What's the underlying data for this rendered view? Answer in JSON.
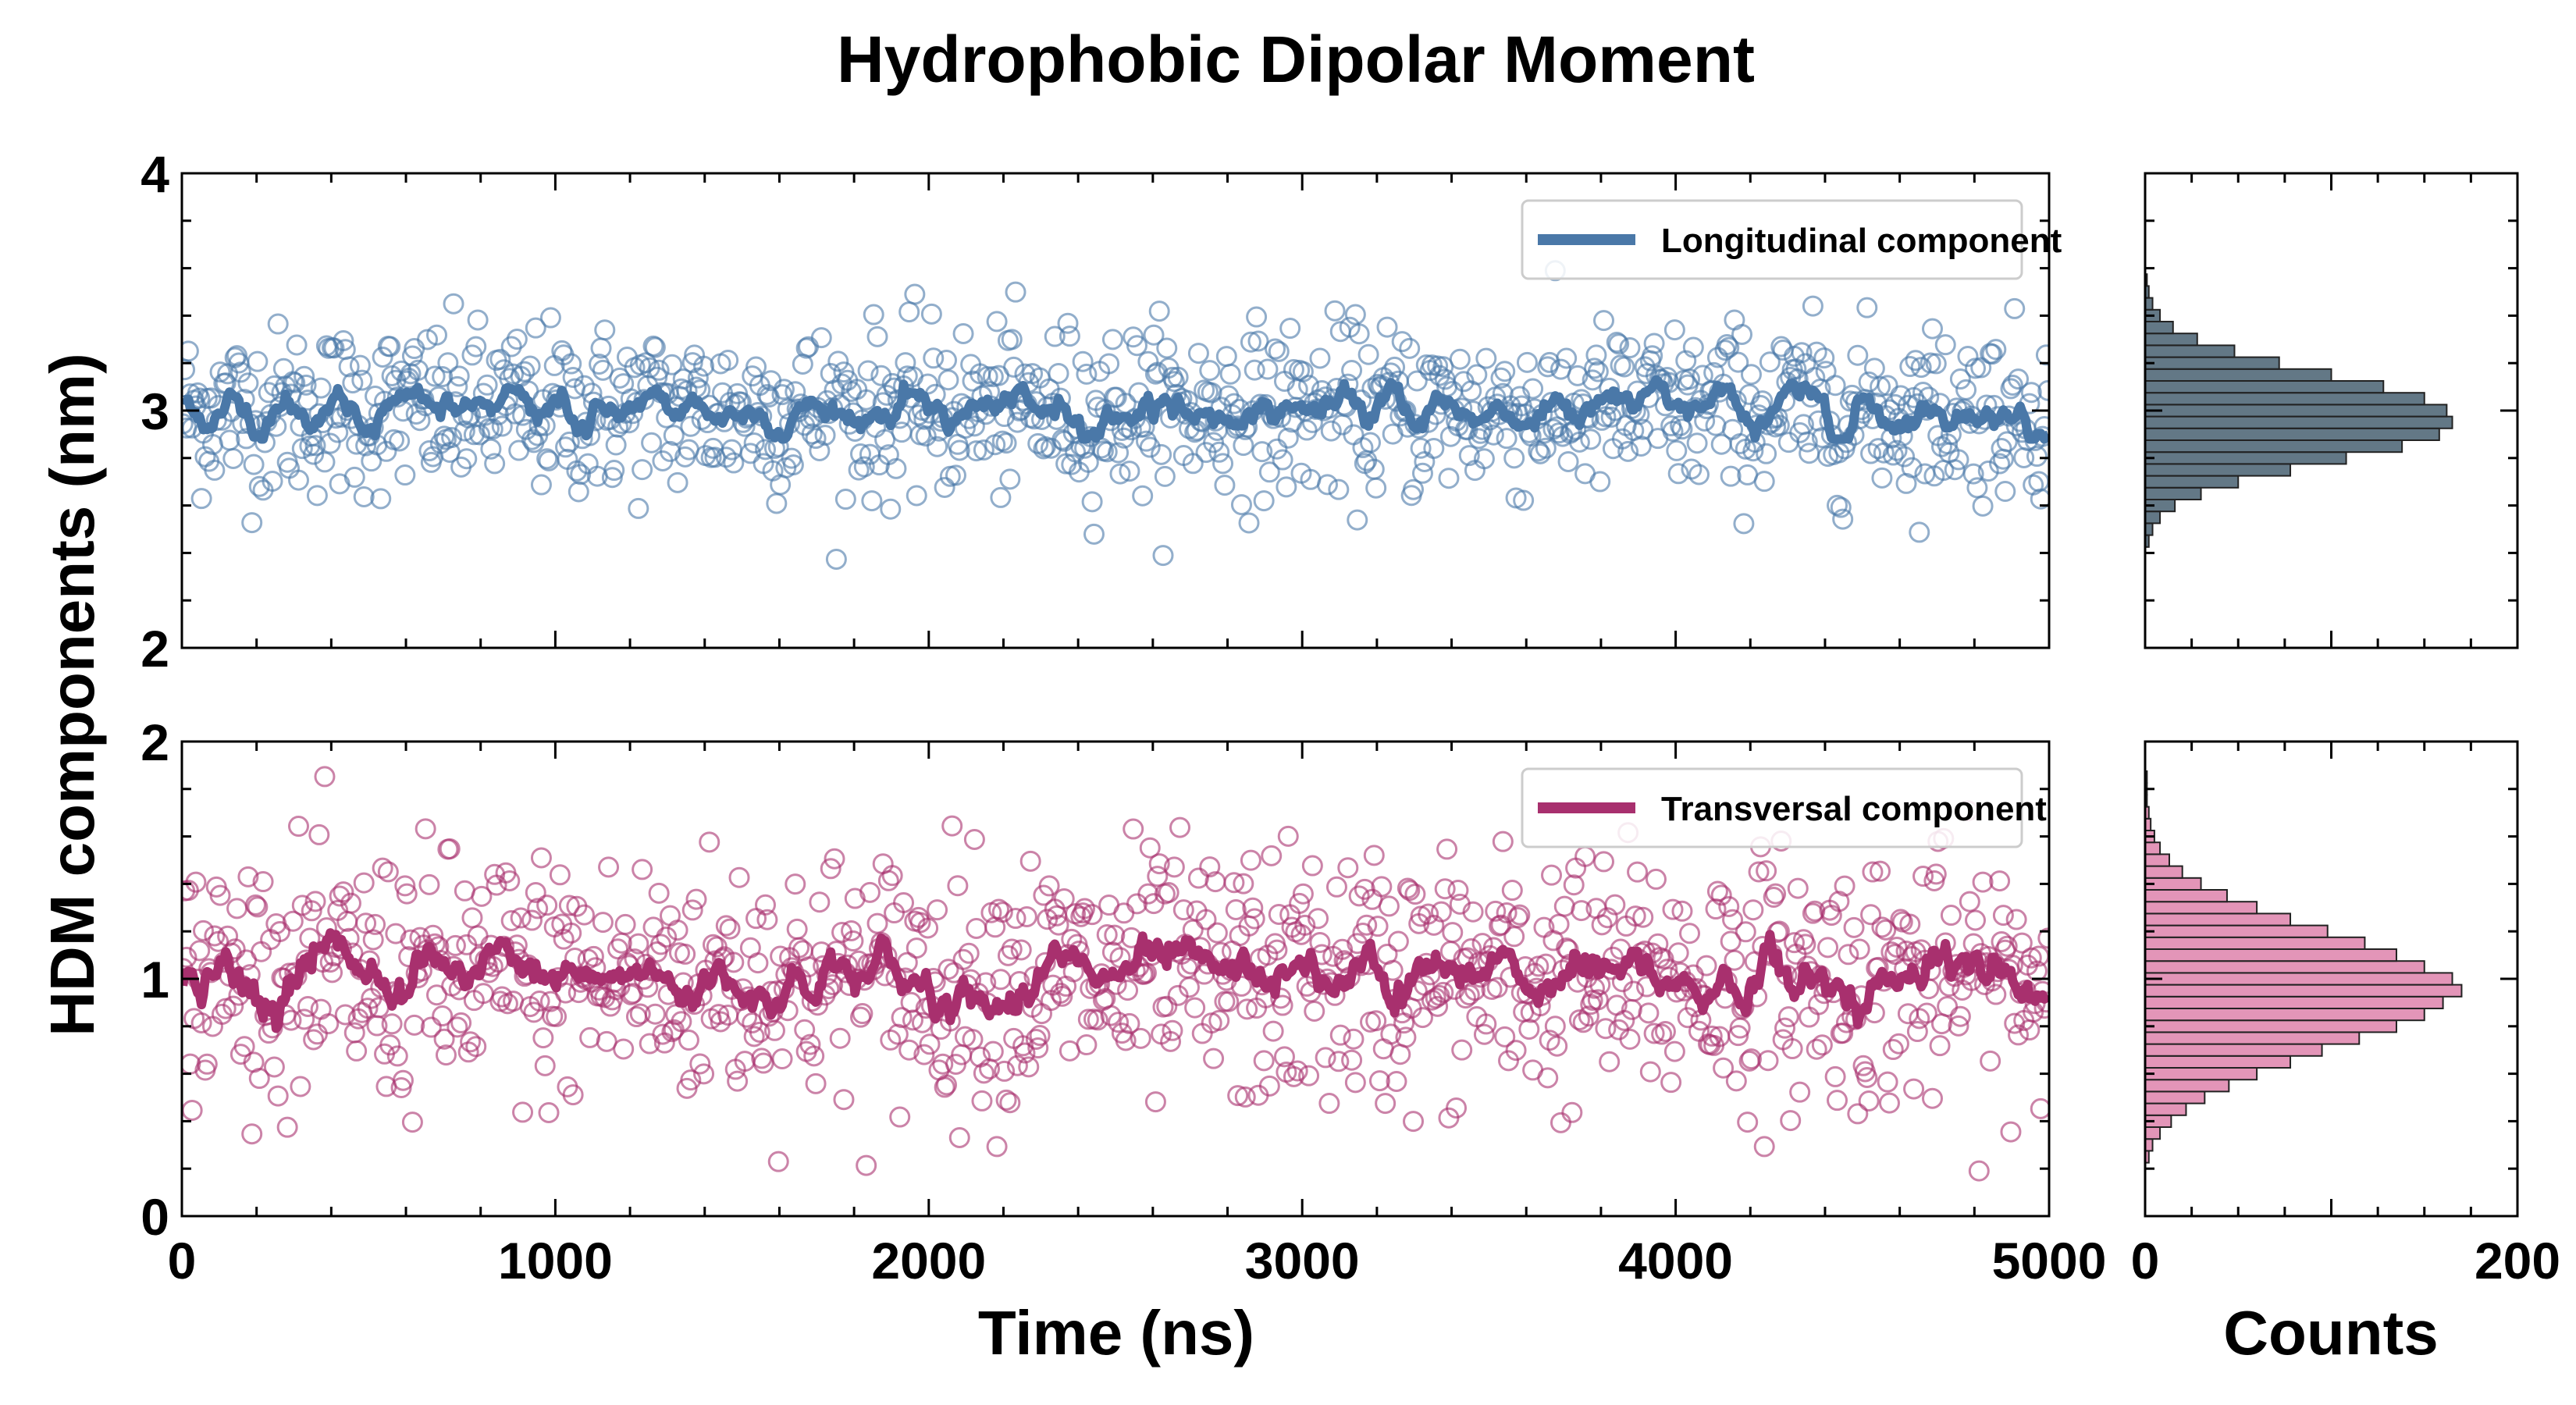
{
  "colors": {
    "longitudinal": "#4a78a8",
    "longitudinal_hist": "#2f4b5e",
    "transversal": "#a8306e",
    "transversal_hist": "#e08ab0"
  },
  "chart_data": {
    "type": "scatter",
    "title": "Hydrophobic Dipolar Moment",
    "xlabel": "Time (ns)",
    "ylabel": "HDM components (nm)",
    "hist_xlabel": "Counts",
    "panels": [
      {
        "name": "Longitudinal component",
        "xlim": [
          0,
          5000
        ],
        "ylim": [
          2,
          4
        ],
        "yticks": [
          "2",
          "3",
          "4"
        ],
        "xticks": [
          "0",
          "1000",
          "2000",
          "3000",
          "4000",
          "5000"
        ],
        "show_xtick_labels": false,
        "scatter_mean": 3.0,
        "scatter_sd": 0.18,
        "n_points": 1000,
        "moving_avg_range": [
          2.88,
          3.16
        ],
        "histogram": {
          "bins": [
            2.45,
            2.5,
            2.55,
            2.6,
            2.65,
            2.7,
            2.75,
            2.8,
            2.85,
            2.9,
            2.95,
            3.0,
            3.05,
            3.1,
            3.15,
            3.2,
            3.25,
            3.3,
            3.35,
            3.4,
            3.45,
            3.5,
            3.55
          ],
          "counts": [
            2,
            4,
            8,
            16,
            30,
            50,
            78,
            108,
            138,
            158,
            165,
            162,
            150,
            128,
            100,
            72,
            48,
            28,
            15,
            8,
            4,
            2,
            1
          ]
        }
      },
      {
        "name": "Transversal component",
        "xlim": [
          0,
          5000
        ],
        "ylim": [
          0,
          2
        ],
        "yticks": [
          "0",
          "1",
          "2"
        ],
        "xticks": [
          "0",
          "1000",
          "2000",
          "3000",
          "4000",
          "5000"
        ],
        "show_xtick_labels": true,
        "scatter_mean": 1.0,
        "scatter_sd": 0.27,
        "n_points": 1000,
        "moving_avg_range": [
          0.65,
          1.28
        ],
        "histogram": {
          "bins": [
            0.25,
            0.3,
            0.35,
            0.4,
            0.45,
            0.5,
            0.55,
            0.6,
            0.65,
            0.7,
            0.75,
            0.8,
            0.85,
            0.9,
            0.95,
            1.0,
            1.05,
            1.1,
            1.15,
            1.2,
            1.25,
            1.3,
            1.35,
            1.4,
            1.45,
            1.5,
            1.55,
            1.6,
            1.65,
            1.7,
            1.75,
            1.8,
            1.85
          ],
          "counts": [
            2,
            4,
            8,
            14,
            22,
            32,
            45,
            60,
            78,
            95,
            115,
            135,
            150,
            160,
            170,
            165,
            150,
            135,
            118,
            98,
            78,
            60,
            44,
            30,
            20,
            13,
            8,
            5,
            3,
            2,
            1,
            1,
            1
          ]
        }
      }
    ],
    "hist_xlim": [
      0,
      200
    ],
    "hist_xticks": [
      "0",
      "200"
    ],
    "legend_position": "top-right"
  }
}
